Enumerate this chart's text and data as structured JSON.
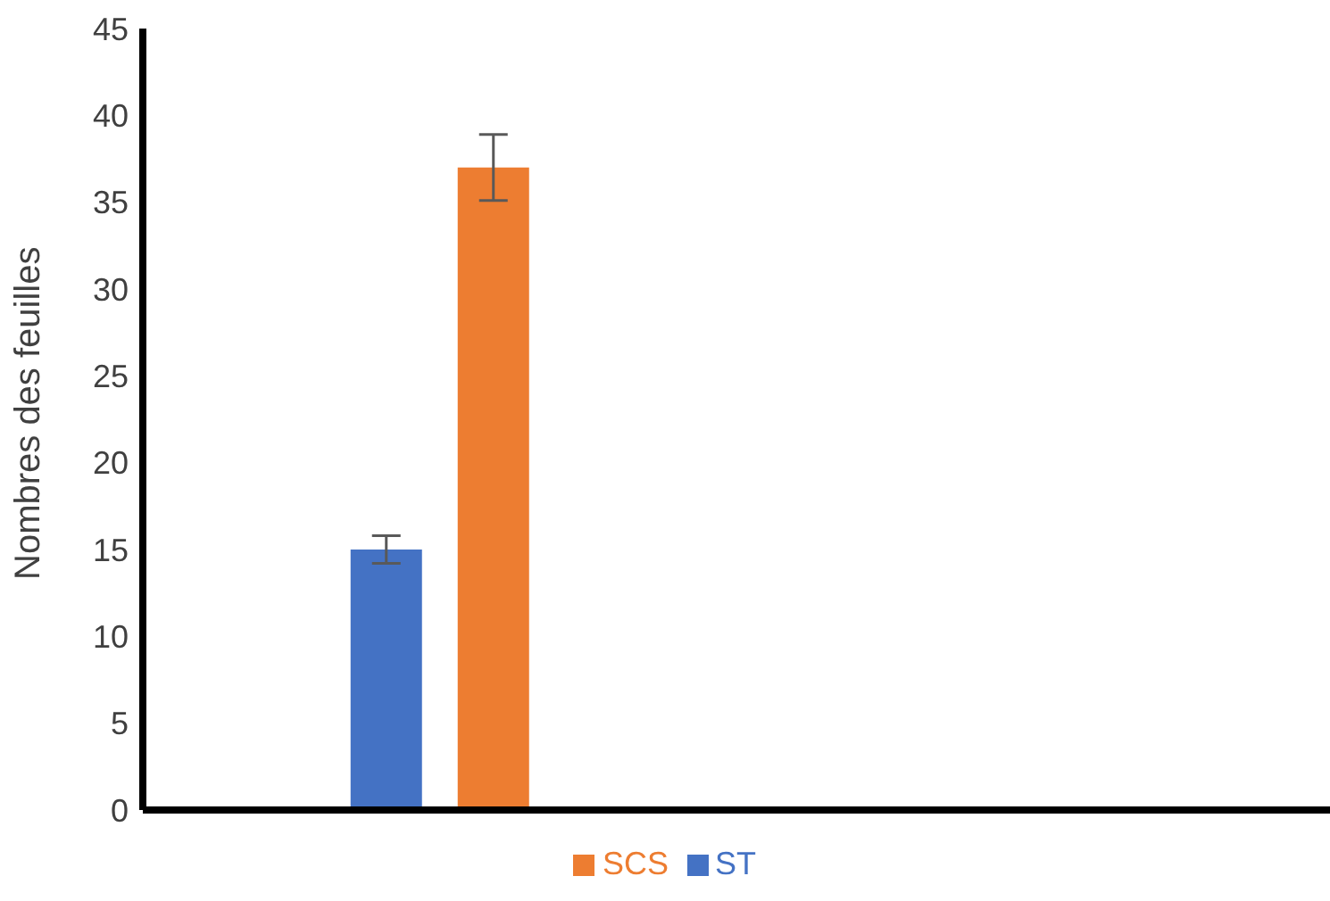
{
  "chart_data": {
    "type": "bar",
    "ylabel": "Nombres des feuilles",
    "categories": [
      null,
      null
    ],
    "series": [
      {
        "name": "ST",
        "color": "#4472c4",
        "values": [
          15,
          null
        ],
        "errors": [
          0.8,
          null
        ]
      },
      {
        "name": "SCS",
        "color": "#ed7d31",
        "values": [
          37,
          null
        ],
        "errors": [
          1.9,
          null
        ]
      }
    ],
    "ylim": [
      0,
      45
    ],
    "yticks": [
      0,
      5,
      10,
      15,
      20,
      25,
      30,
      35,
      40,
      45
    ],
    "grid": false,
    "legend": "bottom",
    "tick_labels": "y"
  }
}
